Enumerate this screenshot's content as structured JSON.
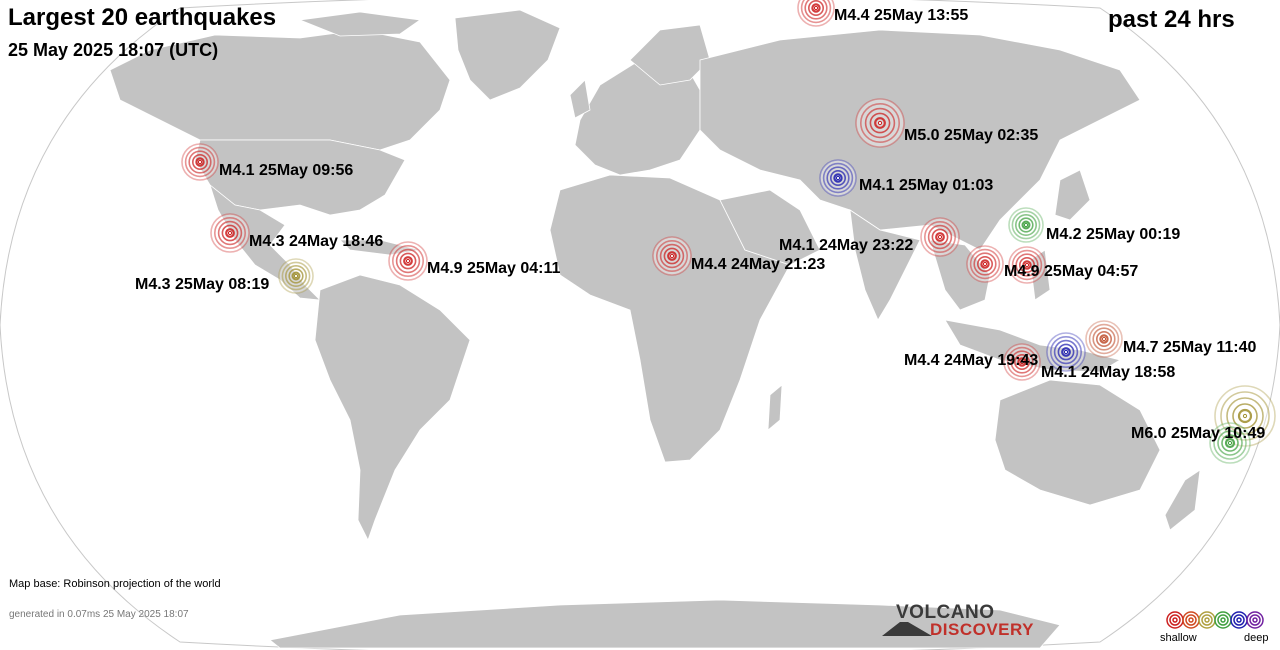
{
  "header": {
    "title": "Largest 20 earthquakes",
    "datetime": "25 May 2025 18:07 (UTC)",
    "period": "past 24 hrs"
  },
  "footer": {
    "map_base": "Map base: Robinson projection of the world",
    "generated": "generated in 0.07ms 25 May 2025 18:07"
  },
  "logo": {
    "line1": "VOLCANO",
    "line2": "DISCOVERY"
  },
  "legend": {
    "shallow": "shallow",
    "deep": "deep",
    "colors": [
      "#cc2020",
      "#d04a20",
      "#b0a040",
      "#40a040",
      "#2020b0",
      "#7020a0"
    ]
  },
  "quakes": [
    {
      "label": "M4.4 25May 13:55",
      "color": "#cc2020"
    },
    {
      "label": "M5.0 25May 02:35",
      "color": "#cc2020"
    },
    {
      "label": "M4.1 25May 09:56",
      "color": "#cc2020"
    },
    {
      "label": "M4.1 25May 01:03",
      "color": "#2020b0"
    },
    {
      "label": "M4.2 25May 00:19",
      "color": "#40a040"
    },
    {
      "label": "M4.3 24May 18:46",
      "color": "#cc2020"
    },
    {
      "label": "M4.1 24May 23:22",
      "color": "#cc2020"
    },
    {
      "label": "M4.9 25May 04:11",
      "color": "#cc2020"
    },
    {
      "label": "M4.4 24May 21:23",
      "color": "#cc2020"
    },
    {
      "label": "M4.9 25May 04:57",
      "color": "#cc2020"
    },
    {
      "label": "M4.3 25May 08:19",
      "color": "#a09030"
    },
    {
      "label": "M4.7 25May 11:40",
      "color": "#c05030"
    },
    {
      "label": "M4.4 24May 19:43",
      "color": "#cc2020"
    },
    {
      "label": "M4.1 24May 18:58",
      "color": "#2020b0"
    },
    {
      "label": "M6.0 25May 10:49",
      "color": "#a09030"
    }
  ],
  "extra_markers": [
    {
      "color": "#cc2020"
    },
    {
      "color": "#40a040"
    }
  ]
}
